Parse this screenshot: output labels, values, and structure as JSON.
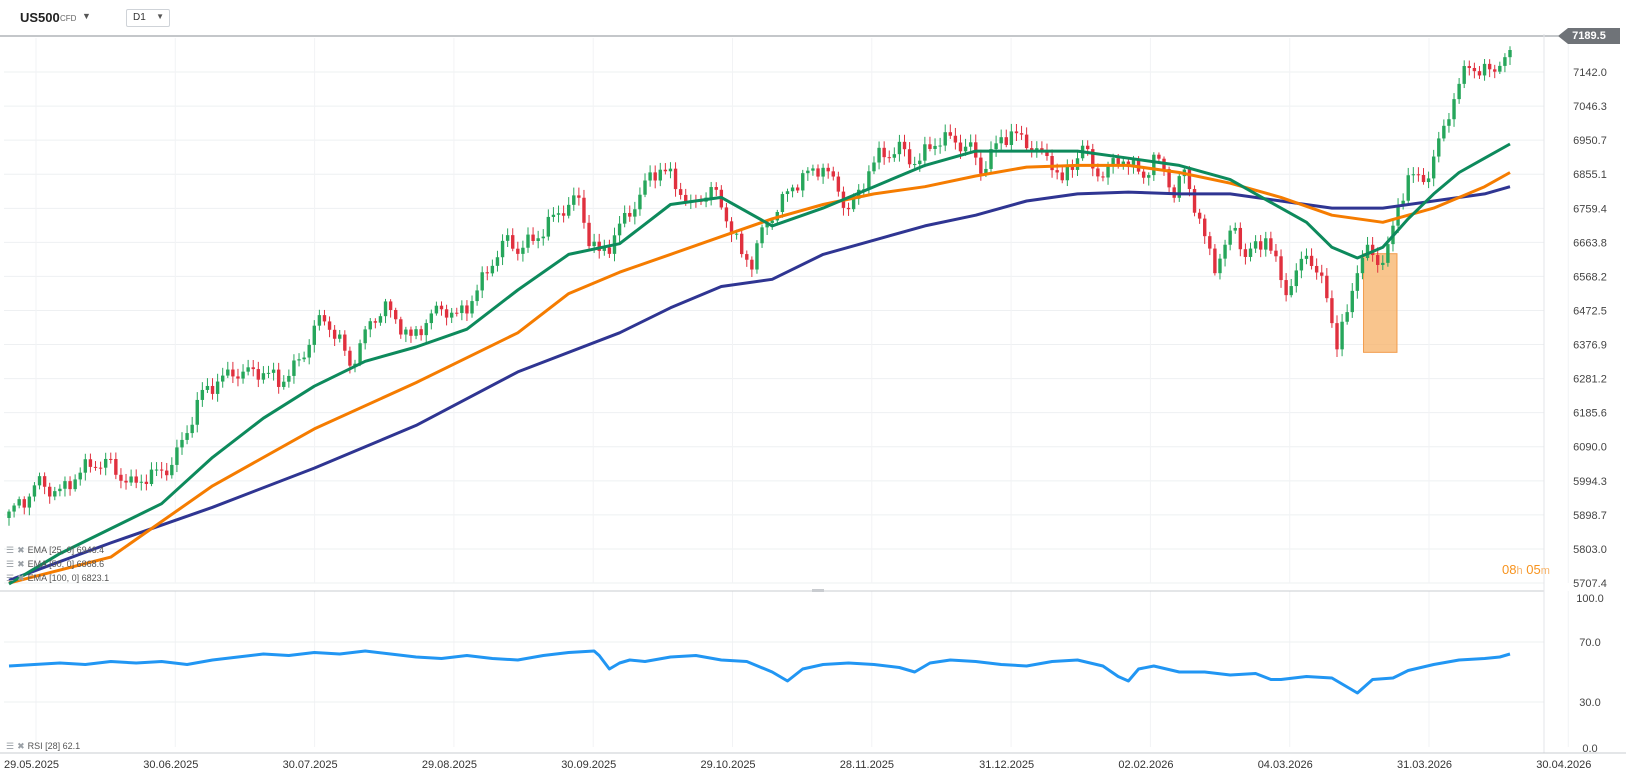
{
  "toolbar": {
    "symbol": "US500",
    "symbol_type": "CFD",
    "timeframe": "D1"
  },
  "price_tag": "7189.5",
  "countdown": {
    "h": "08",
    "h_unit": "h",
    "m": "05",
    "m_unit": "m"
  },
  "indicators": {
    "ema25": "EMA [25, 0] 6946.4",
    "ema50": "EMA [50, 0] 6868.6",
    "ema100": "EMA [100, 0] 6823.1",
    "rsi": "RSI [28] 62.1"
  },
  "colors": {
    "up": "#26a65b",
    "down": "#e0303e",
    "ema25": "#0d8a5c",
    "ema50": "#f57c00",
    "ema100": "#2f3592",
    "rsi": "#2196f3",
    "highlight": "#f7b267"
  },
  "chart_data": [
    {
      "type": "candlestick",
      "title": "US500 CFD D1",
      "x_labels": [
        "29.05.2025",
        "30.06.2025",
        "30.07.2025",
        "29.08.2025",
        "30.09.2025",
        "29.10.2025",
        "28.11.2025",
        "31.12.2025",
        "02.02.2026",
        "04.03.2026",
        "31.03.2026",
        "30.04.2026"
      ],
      "y_ticks": [
        "7142.0",
        "7046.3",
        "6950.7",
        "6855.1",
        "6759.4",
        "6663.8",
        "6568.2",
        "6472.5",
        "6376.9",
        "6281.2",
        "6185.6",
        "6090.0",
        "5994.3",
        "5898.7",
        "5803.0",
        "5707.4"
      ],
      "ylim": [
        5707.4,
        7237.6
      ],
      "last_price": 7189.5,
      "close_path": [
        [
          0,
          5900
        ],
        [
          3,
          5930
        ],
        [
          6,
          5990
        ],
        [
          10,
          5970
        ],
        [
          14,
          6010
        ],
        [
          17,
          6040
        ],
        [
          20,
          6050
        ],
        [
          24,
          5980
        ],
        [
          28,
          6000
        ],
        [
          32,
          6050
        ],
        [
          35,
          6140
        ],
        [
          38,
          6230
        ],
        [
          41,
          6270
        ],
        [
          44,
          6310
        ],
        [
          47,
          6300
        ],
        [
          50,
          6290
        ],
        [
          53,
          6270
        ],
        [
          56,
          6320
        ],
        [
          58,
          6360
        ],
        [
          60,
          6420
        ],
        [
          62,
          6440
        ],
        [
          64,
          6400
        ],
        [
          66,
          6360
        ],
        [
          67,
          6330
        ],
        [
          69,
          6380
        ],
        [
          71,
          6440
        ],
        [
          74,
          6470
        ],
        [
          77,
          6430
        ],
        [
          79,
          6400
        ],
        [
          82,
          6450
        ],
        [
          85,
          6470
        ],
        [
          88,
          6450
        ],
        [
          90,
          6490
        ],
        [
          92,
          6540
        ],
        [
          95,
          6610
        ],
        [
          98,
          6660
        ],
        [
          100,
          6640
        ],
        [
          103,
          6680
        ],
        [
          106,
          6720
        ],
        [
          110,
          6760
        ],
        [
          112,
          6780
        ],
        [
          114,
          6680
        ],
        [
          116,
          6640
        ],
        [
          118,
          6660
        ],
        [
          120,
          6700
        ],
        [
          122,
          6740
        ],
        [
          124,
          6790
        ],
        [
          126,
          6860
        ],
        [
          128,
          6880
        ],
        [
          130,
          6850
        ],
        [
          132,
          6800
        ],
        [
          134,
          6750
        ],
        [
          136,
          6790
        ],
        [
          138,
          6820
        ],
        [
          140,
          6780
        ],
        [
          142,
          6700
        ],
        [
          144,
          6620
        ],
        [
          146,
          6600
        ],
        [
          148,
          6690
        ],
        [
          150,
          6750
        ],
        [
          152,
          6790
        ],
        [
          154,
          6820
        ],
        [
          156,
          6840
        ],
        [
          158,
          6850
        ],
        [
          160,
          6880
        ],
        [
          163,
          6820
        ],
        [
          165,
          6760
        ],
        [
          167,
          6790
        ],
        [
          169,
          6860
        ],
        [
          171,
          6900
        ],
        [
          173,
          6920
        ],
        [
          175,
          6940
        ],
        [
          177,
          6900
        ],
        [
          179,
          6890
        ],
        [
          181,
          6920
        ],
        [
          183,
          6950
        ],
        [
          185,
          6960
        ],
        [
          187,
          6950
        ],
        [
          189,
          6930
        ],
        [
          191,
          6860
        ],
        [
          193,
          6900
        ],
        [
          195,
          6950
        ],
        [
          197,
          6980
        ],
        [
          199,
          6960
        ],
        [
          201,
          6940
        ],
        [
          203,
          6900
        ],
        [
          205,
          6880
        ],
        [
          207,
          6830
        ],
        [
          209,
          6890
        ],
        [
          211,
          6950
        ],
        [
          213,
          6870
        ],
        [
          215,
          6850
        ],
        [
          217,
          6870
        ],
        [
          219,
          6900
        ],
        [
          221,
          6880
        ],
        [
          223,
          6860
        ],
        [
          225,
          6900
        ],
        [
          227,
          6860
        ],
        [
          229,
          6790
        ],
        [
          231,
          6860
        ],
        [
          233,
          6780
        ],
        [
          235,
          6680
        ],
        [
          237,
          6600
        ],
        [
          239,
          6640
        ],
        [
          241,
          6700
        ],
        [
          243,
          6620
        ],
        [
          245,
          6660
        ],
        [
          247,
          6690
        ],
        [
          249,
          6600
        ],
        [
          251,
          6520
        ],
        [
          253,
          6560
        ],
        [
          255,
          6640
        ],
        [
          257,
          6590
        ],
        [
          259,
          6520
        ],
        [
          261,
          6380
        ],
        [
          263,
          6450
        ],
        [
          265,
          6590
        ],
        [
          267,
          6640
        ],
        [
          269,
          6620
        ],
        [
          271,
          6650
        ],
        [
          273,
          6760
        ],
        [
          275,
          6840
        ],
        [
          277,
          6830
        ],
        [
          279,
          6860
        ],
        [
          281,
          6950
        ],
        [
          283,
          7040
        ],
        [
          285,
          7100
        ],
        [
          287,
          7160
        ],
        [
          289,
          7130
        ],
        [
          291,
          7150
        ],
        [
          293,
          7180
        ],
        [
          295,
          7190
        ]
      ],
      "ema25_path": [
        [
          0,
          5705
        ],
        [
          10,
          5790
        ],
        [
          20,
          5860
        ],
        [
          30,
          5930
        ],
        [
          40,
          6060
        ],
        [
          50,
          6170
        ],
        [
          60,
          6260
        ],
        [
          70,
          6330
        ],
        [
          80,
          6370
        ],
        [
          90,
          6420
        ],
        [
          100,
          6530
        ],
        [
          110,
          6630
        ],
        [
          120,
          6660
        ],
        [
          130,
          6770
        ],
        [
          140,
          6790
        ],
        [
          150,
          6710
        ],
        [
          160,
          6760
        ],
        [
          170,
          6820
        ],
        [
          180,
          6880
        ],
        [
          190,
          6920
        ],
        [
          200,
          6920
        ],
        [
          210,
          6920
        ],
        [
          220,
          6900
        ],
        [
          230,
          6880
        ],
        [
          240,
          6840
        ],
        [
          250,
          6760
        ],
        [
          255,
          6720
        ],
        [
          260,
          6650
        ],
        [
          265,
          6620
        ],
        [
          270,
          6650
        ],
        [
          275,
          6730
        ],
        [
          280,
          6800
        ],
        [
          285,
          6860
        ],
        [
          290,
          6900
        ],
        [
          295,
          6940
        ]
      ],
      "ema50_path": [
        [
          0,
          5707
        ],
        [
          20,
          5780
        ],
        [
          40,
          5980
        ],
        [
          60,
          6140
        ],
        [
          80,
          6270
        ],
        [
          100,
          6410
        ],
        [
          110,
          6520
        ],
        [
          120,
          6580
        ],
        [
          130,
          6630
        ],
        [
          140,
          6680
        ],
        [
          150,
          6730
        ],
        [
          160,
          6770
        ],
        [
          170,
          6800
        ],
        [
          180,
          6820
        ],
        [
          190,
          6850
        ],
        [
          200,
          6875
        ],
        [
          210,
          6880
        ],
        [
          220,
          6880
        ],
        [
          230,
          6860
        ],
        [
          240,
          6830
        ],
        [
          250,
          6790
        ],
        [
          260,
          6740
        ],
        [
          270,
          6720
        ],
        [
          280,
          6760
        ],
        [
          290,
          6820
        ],
        [
          295,
          6860
        ]
      ],
      "ema100_path": [
        [
          0,
          5715
        ],
        [
          20,
          5820
        ],
        [
          40,
          5920
        ],
        [
          60,
          6030
        ],
        [
          80,
          6150
        ],
        [
          100,
          6300
        ],
        [
          120,
          6410
        ],
        [
          130,
          6480
        ],
        [
          140,
          6540
        ],
        [
          150,
          6560
        ],
        [
          160,
          6630
        ],
        [
          170,
          6670
        ],
        [
          180,
          6710
        ],
        [
          190,
          6740
        ],
        [
          200,
          6780
        ],
        [
          210,
          6800
        ],
        [
          220,
          6805
        ],
        [
          230,
          6800
        ],
        [
          240,
          6800
        ],
        [
          250,
          6780
        ],
        [
          260,
          6760
        ],
        [
          270,
          6760
        ],
        [
          280,
          6780
        ],
        [
          290,
          6800
        ],
        [
          295,
          6820
        ]
      ],
      "highlight_range": {
        "from_index": 267,
        "to_index": 272,
        "low": 6355,
        "high": 6632
      }
    },
    {
      "type": "line",
      "title": "RSI [28]",
      "y_ticks": [
        "100.0",
        "70.0",
        "30.0",
        "0.0"
      ],
      "ylim": [
        0,
        100
      ],
      "last_value": 62.1,
      "path": [
        [
          0,
          54
        ],
        [
          5,
          55
        ],
        [
          10,
          56
        ],
        [
          15,
          55
        ],
        [
          20,
          57
        ],
        [
          25,
          56
        ],
        [
          30,
          57
        ],
        [
          35,
          55
        ],
        [
          40,
          58
        ],
        [
          45,
          60
        ],
        [
          50,
          62
        ],
        [
          55,
          61
        ],
        [
          60,
          63
        ],
        [
          65,
          62
        ],
        [
          70,
          64
        ],
        [
          75,
          62
        ],
        [
          80,
          60
        ],
        [
          85,
          59
        ],
        [
          90,
          61
        ],
        [
          95,
          59
        ],
        [
          100,
          58
        ],
        [
          105,
          61
        ],
        [
          110,
          63
        ],
        [
          115,
          64
        ],
        [
          116,
          61
        ],
        [
          118,
          52
        ],
        [
          120,
          56
        ],
        [
          122,
          58
        ],
        [
          125,
          57
        ],
        [
          130,
          60
        ],
        [
          135,
          61
        ],
        [
          140,
          58
        ],
        [
          145,
          57
        ],
        [
          150,
          50
        ],
        [
          153,
          44
        ],
        [
          156,
          52
        ],
        [
          160,
          55
        ],
        [
          165,
          56
        ],
        [
          170,
          55
        ],
        [
          175,
          53
        ],
        [
          178,
          50
        ],
        [
          181,
          56
        ],
        [
          185,
          58
        ],
        [
          190,
          57
        ],
        [
          195,
          55
        ],
        [
          200,
          54
        ],
        [
          205,
          57
        ],
        [
          210,
          58
        ],
        [
          215,
          54
        ],
        [
          218,
          47
        ],
        [
          220,
          44
        ],
        [
          222,
          52
        ],
        [
          225,
          54
        ],
        [
          230,
          50
        ],
        [
          235,
          50
        ],
        [
          240,
          48
        ],
        [
          245,
          49
        ],
        [
          248,
          45
        ],
        [
          250,
          45
        ],
        [
          255,
          47
        ],
        [
          260,
          46
        ],
        [
          263,
          40
        ],
        [
          265,
          36
        ],
        [
          268,
          45
        ],
        [
          272,
          46
        ],
        [
          275,
          51
        ],
        [
          280,
          55
        ],
        [
          285,
          58
        ],
        [
          290,
          59
        ],
        [
          293,
          60
        ],
        [
          295,
          62
        ]
      ]
    }
  ]
}
